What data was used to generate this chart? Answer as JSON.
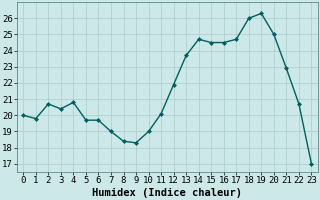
{
  "x": [
    0,
    1,
    2,
    3,
    4,
    5,
    6,
    7,
    8,
    9,
    10,
    11,
    12,
    13,
    14,
    15,
    16,
    17,
    18,
    19,
    20,
    21,
    22,
    23
  ],
  "y": [
    20.0,
    19.8,
    20.7,
    20.4,
    20.8,
    19.7,
    19.7,
    19.0,
    18.4,
    18.3,
    19.0,
    20.1,
    21.9,
    23.7,
    24.7,
    24.5,
    24.5,
    24.7,
    26.0,
    26.3,
    25.0,
    22.9,
    20.7,
    17.0
  ],
  "line_color": "#006060",
  "marker": "D",
  "marker_size": 2,
  "bg_color": "#cce8e8",
  "grid_color": "#aacaca",
  "xlabel": "Humidex (Indice chaleur)",
  "ylim": [
    16.5,
    27
  ],
  "xlim": [
    -0.5,
    23.5
  ],
  "yticks": [
    17,
    18,
    19,
    20,
    21,
    22,
    23,
    24,
    25,
    26
  ],
  "xtick_labels": [
    "0",
    "1",
    "2",
    "3",
    "4",
    "5",
    "6",
    "7",
    "8",
    "9",
    "10",
    "11",
    "12",
    "13",
    "14",
    "15",
    "16",
    "17",
    "18",
    "19",
    "20",
    "21",
    "22",
    "23"
  ],
  "font_size": 6.5,
  "xlabel_fontsize": 7.5,
  "linewidth": 1.0
}
